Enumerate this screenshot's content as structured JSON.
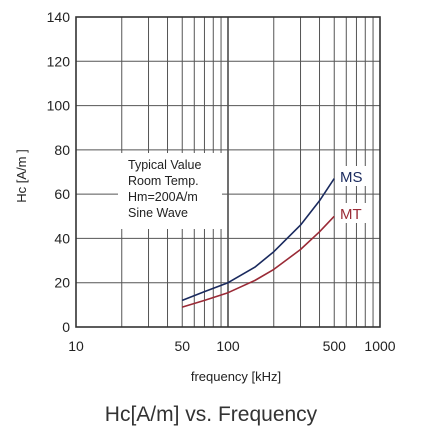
{
  "caption": "Hc[A/m] vs. Frequency",
  "chart_data": {
    "type": "line",
    "title": "",
    "xlabel": "frequency  [kHz]",
    "ylabel": "Hc [A/m ]",
    "x_scale": "log",
    "xlim": [
      10,
      1000
    ],
    "ylim": [
      0,
      140
    ],
    "x_ticks": [
      {
        "value": 10,
        "label": "10"
      },
      {
        "value": 50,
        "label": "50"
      },
      {
        "value": 100,
        "label": "100"
      },
      {
        "value": 500,
        "label": "500"
      },
      {
        "value": 1000,
        "label": "1000"
      }
    ],
    "y_ticks": [
      {
        "value": 0,
        "label": "0"
      },
      {
        "value": 20,
        "label": "20"
      },
      {
        "value": 40,
        "label": "40"
      },
      {
        "value": 60,
        "label": "60"
      },
      {
        "value": 80,
        "label": "80"
      },
      {
        "value": 100,
        "label": "100"
      },
      {
        "value": 120,
        "label": "120"
      },
      {
        "value": 140,
        "label": "140"
      }
    ],
    "grid": true,
    "annotation": [
      "Typical Value",
      "Room Temp.",
      "Hm=200A/m",
      "Sine Wave"
    ],
    "series": [
      {
        "name": "MS",
        "color": "#1a2a5e",
        "x": [
          50,
          70,
          100,
          150,
          200,
          300,
          400,
          500
        ],
        "y": [
          12,
          16,
          20,
          27,
          34,
          46,
          57,
          67
        ]
      },
      {
        "name": "MT",
        "color": "#9a2a36",
        "x": [
          50,
          70,
          100,
          150,
          200,
          300,
          400,
          500
        ],
        "y": [
          9,
          12,
          15.5,
          21,
          26,
          35,
          43,
          50
        ]
      }
    ]
  }
}
